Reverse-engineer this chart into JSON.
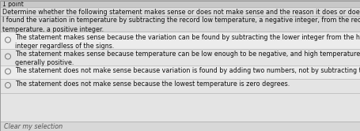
{
  "points_label": "1 point",
  "instruction": "Determine whether the following statement makes sense or does not make sense and the reason it does or does not.",
  "statement": "I found the variation in temperature by subtracting the record low temperature, a negative integer, from the record high\ntemperature, a positive integer.",
  "options": [
    "The statement makes sense because the variation can be found by subtracting the lower integer from the higher\ninteger regardless of the signs.",
    "The statement makes sense because temperature can be low enough to be negative, and high temperatures are\ngenerally positive.",
    "The statement does not make sense because variation is found by adding two numbers, not by subtracting them.",
    "The statement does not make sense because the lowest temperature is zero degrees."
  ],
  "footer": "Clear my selection",
  "bg_color": "#c8c8c8",
  "header_bg": "#d8d8d8",
  "white_bg": "#f0f0f0",
  "option_bg": "#e8e8e8",
  "text_color": "#111111",
  "line_color": "#aaaaaa",
  "font_size_main": 5.8,
  "font_size_points": 5.5
}
